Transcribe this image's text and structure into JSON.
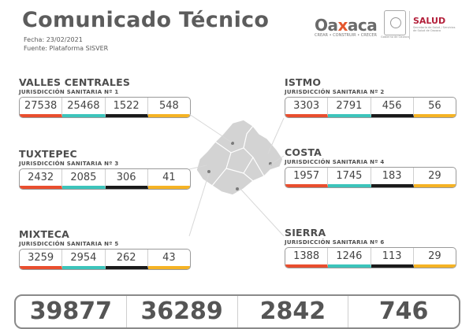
{
  "header": {
    "title": "Comunicado Técnico",
    "date": "Fecha: 23/02/2021",
    "source": "Fuente: Plataforma SISVER"
  },
  "logos": {
    "oaxaca_word_pre": "Oa",
    "oaxaca_word_x": "x",
    "oaxaca_word_post": "aca",
    "oaxaca_tagline": "CREAR • CONSTRUIR • CRECER",
    "seal_caption": "Gobierno de Oaxaca",
    "salud_name": "SALUD",
    "salud_sub": "Secretaría de Salud / Servicios de Salud de Oaxaca"
  },
  "colors": {
    "c0": "#e94e2e",
    "c1": "#3cc4bb",
    "c2": "#1a1a1a",
    "c3": "#f5b324"
  },
  "regions": [
    {
      "name": "VALLES CENTRALES",
      "jurisdiction": "JURISDICCIÓN SANITARIA Nº 1",
      "values": [
        "27538",
        "25468",
        "1522",
        "548"
      ]
    },
    {
      "name": "ISTMO",
      "jurisdiction": "JURISDICCIÓN SANITARIA Nº 2",
      "values": [
        "3303",
        "2791",
        "456",
        "56"
      ]
    },
    {
      "name": "TUXTEPEC",
      "jurisdiction": "JURISDICCIÓN SANITARIA Nº 3",
      "values": [
        "2432",
        "2085",
        "306",
        "41"
      ]
    },
    {
      "name": "COSTA",
      "jurisdiction": "JURISDICCIÓN SANITARIA Nº 4",
      "values": [
        "1957",
        "1745",
        "183",
        "29"
      ]
    },
    {
      "name": "MIXTECA",
      "jurisdiction": "JURISDICCIÓN SANITARIA Nº 5",
      "values": [
        "3259",
        "2954",
        "262",
        "43"
      ]
    },
    {
      "name": "SIERRA",
      "jurisdiction": "JURISDICCIÓN SANITARIA Nº 6",
      "values": [
        "1388",
        "1246",
        "113",
        "29"
      ]
    }
  ],
  "totals": [
    "39877",
    "36289",
    "2842",
    "746"
  ]
}
